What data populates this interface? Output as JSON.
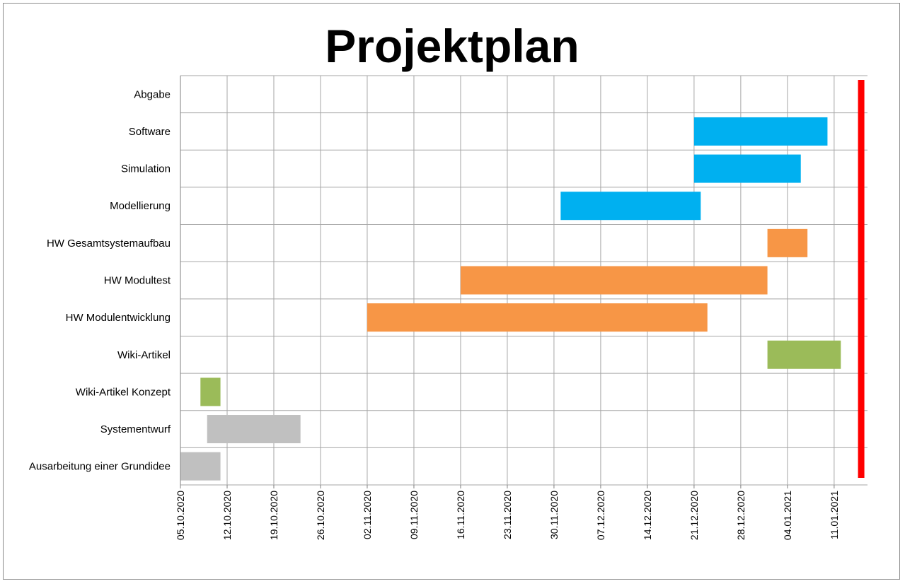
{
  "chart_data": {
    "type": "bar",
    "orientation": "horizontal",
    "title": "Projektplan",
    "xlabel": "",
    "ylabel": "",
    "grid": true,
    "x_axis": {
      "type": "date",
      "min": "2020-10-05",
      "max": "2021-01-16",
      "tick_dates": [
        "2020-10-05",
        "2020-10-12",
        "2020-10-19",
        "2020-10-26",
        "2020-11-02",
        "2020-11-09",
        "2020-11-16",
        "2020-11-23",
        "2020-11-30",
        "2020-12-07",
        "2020-12-14",
        "2020-12-21",
        "2020-12-28",
        "2021-01-04",
        "2021-01-11"
      ],
      "tick_labels": [
        "05.10.2020",
        "12.10.2020",
        "19.10.2020",
        "26.10.2020",
        "02.11.2020",
        "09.11.2020",
        "16.11.2020",
        "23.11.2020",
        "30.11.2020",
        "07.12.2020",
        "14.12.2020",
        "21.12.2020",
        "28.12.2020",
        "04.01.2021",
        "11.01.2021"
      ]
    },
    "categories": [
      "Abgabe",
      "Software",
      "Simulation",
      "Modellierung",
      "HW Gesamtsystemaufbau",
      "HW Modultest",
      "HW Modulentwicklung",
      "Wiki-Artikel",
      "Wiki-Artikel Konzept",
      "Systementwurf",
      "Ausarbeitung einer Grundidee"
    ],
    "tasks": [
      {
        "label": "Software",
        "start": "2020-12-21",
        "end": "2021-01-10",
        "color": "#00b0f0"
      },
      {
        "label": "Simulation",
        "start": "2020-12-21",
        "end": "2021-01-06",
        "color": "#00b0f0"
      },
      {
        "label": "Modellierung",
        "start": "2020-12-01",
        "end": "2020-12-22",
        "color": "#00b0f0"
      },
      {
        "label": "HW Gesamtsystemaufbau",
        "start": "2021-01-01",
        "end": "2021-01-07",
        "color": "#f79646"
      },
      {
        "label": "HW Modultest",
        "start": "2020-11-16",
        "end": "2021-01-01",
        "color": "#f79646"
      },
      {
        "label": "HW Modulentwicklung",
        "start": "2020-11-02",
        "end": "2020-12-23",
        "color": "#f79646"
      },
      {
        "label": "Wiki-Artikel",
        "start": "2021-01-01",
        "end": "2021-01-12",
        "color": "#9bbb59"
      },
      {
        "label": "Wiki-Artikel Konzept",
        "start": "2020-10-08",
        "end": "2020-10-11",
        "color": "#9bbb59"
      },
      {
        "label": "Systementwurf",
        "start": "2020-10-09",
        "end": "2020-10-23",
        "color": "#c0c0c0"
      },
      {
        "label": "Ausarbeitung einer Grundidee",
        "start": "2020-10-05",
        "end": "2020-10-11",
        "color": "#c0c0c0"
      }
    ],
    "markers": [
      {
        "label": "Abgabe",
        "date": "2021-01-15",
        "color": "#ff0000"
      }
    ],
    "colors": {
      "grid": "#a6a6a6",
      "axis": "#7f7f7f"
    }
  }
}
